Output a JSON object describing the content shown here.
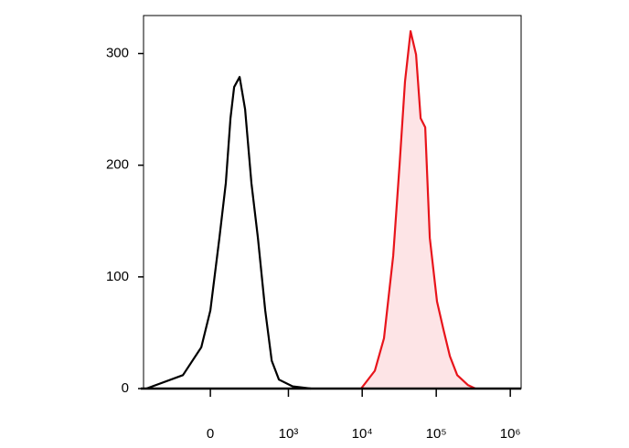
{
  "chart_data": {
    "type": "histogram-overlay",
    "xscale": "biexponential",
    "linear_width": 178,
    "xlim": [
      -700,
      1400000
    ],
    "ylim": [
      0,
      334
    ],
    "xticks": [
      0,
      {
        "value": 1000,
        "label": "10³"
      },
      {
        "value": 10000,
        "label": "10⁴"
      },
      {
        "value": 100000,
        "label": "10⁵"
      },
      {
        "value": 1000000,
        "label": "10⁶"
      }
    ],
    "yticks": [
      0,
      100,
      200,
      300
    ],
    "series": [
      {
        "color": "#000000",
        "fill": null,
        "x": [
          -639,
          -171,
          -51,
          0,
          51,
          89,
          119,
          144,
          185,
          232,
          294,
          370,
          474,
          586,
          741,
          1143,
          2027
        ],
        "values": [
          0,
          12,
          37,
          70,
          135,
          184,
          242,
          270,
          279,
          250,
          184,
          135,
          70,
          25,
          8,
          2,
          0
        ]
      },
      {
        "color": "#e8141b",
        "fill": "#fde4e6",
        "x": [
          9680,
          14800,
          19700,
          26200,
          32000,
          37900,
          45000,
          53400,
          61600,
          70900,
          81800,
          102500,
          125000,
          152700,
          191700,
          269500,
          338000
        ],
        "values": [
          0,
          16,
          45,
          119,
          201,
          275,
          320,
          299,
          242,
          234,
          135,
          78,
          53,
          29,
          12,
          3,
          0
        ]
      }
    ]
  }
}
